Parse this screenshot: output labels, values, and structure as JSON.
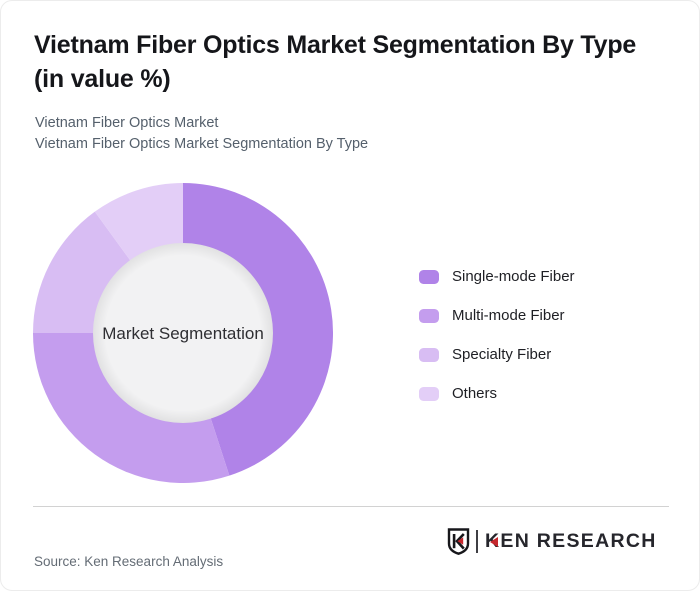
{
  "header": {
    "title_line1": "Vietnam Fiber Optics Market Segmentation By Type",
    "title_line2": "(in value %)",
    "subtitle_line1": "Vietnam Fiber Optics Market",
    "subtitle_line2": "Vietnam Fiber Optics Market Segmentation By Type"
  },
  "chart_data": {
    "type": "pie",
    "donut": true,
    "title": "Vietnam Fiber Optics Market Segmentation By Type (in value %)",
    "center_label": "Market Segmentation",
    "unit": "%",
    "start_angle": 0,
    "inner_radius_ratio": 0.6,
    "inner_fill": "#f2f2f3",
    "legend_position": "right",
    "series": [
      {
        "name": "Single-mode Fiber",
        "value": 45,
        "color": "#b083e8"
      },
      {
        "name": "Multi-mode Fiber",
        "value": 30,
        "color": "#c49dee"
      },
      {
        "name": "Specialty Fiber",
        "value": 15,
        "color": "#d8bdf3"
      },
      {
        "name": "Others",
        "value": 10,
        "color": "#e3cef7"
      }
    ]
  },
  "footer": {
    "source": "Source: Ken Research Analysis",
    "brand": "KEN RESEARCH",
    "brand_monogram": "K",
    "brand_accent_color": "#c5272d"
  }
}
